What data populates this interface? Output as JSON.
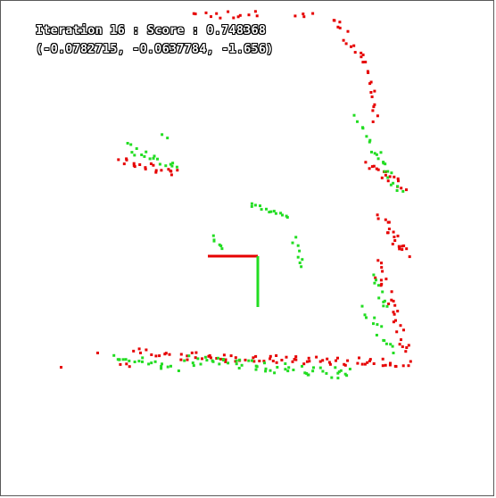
{
  "hud": {
    "line1": "Iteration 16 : Score : 0.748368",
    "line2": "(-0.0782715, -0.0637784, -1.656)"
  },
  "colors": {
    "background": "#ffffff",
    "border": "#5a5a5a",
    "reference_points": "#e60000",
    "aligned_points": "#22dd22",
    "pose_axis_x": "#e60000",
    "pose_axis_y": "#22dd22",
    "hud_text": "#ffffff",
    "hud_outline": "#000000"
  }
}
